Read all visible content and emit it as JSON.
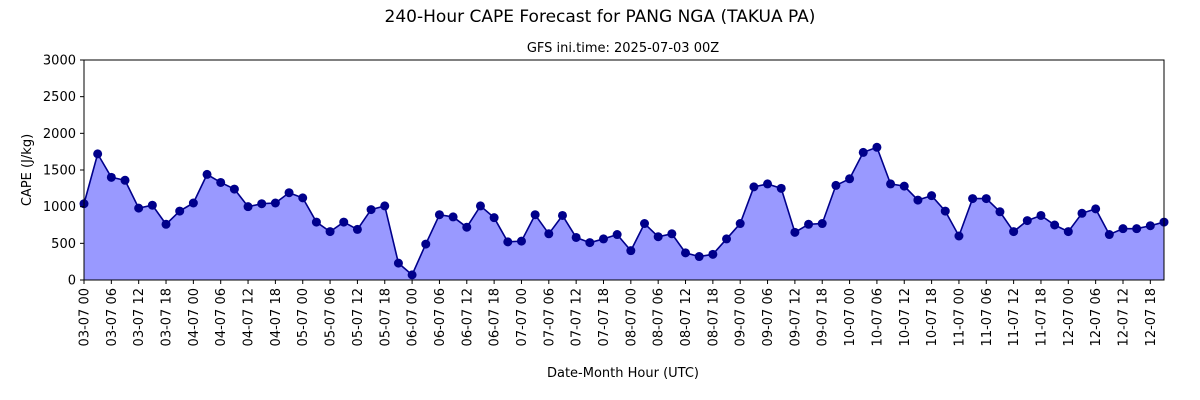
{
  "chart_data": {
    "type": "area",
    "title": "240-Hour CAPE Forecast for PANG NGA (TAKUA PA)",
    "subtitle": "GFS ini.time: 2025-07-03 00Z",
    "xlabel": "Date-Month Hour (UTC)",
    "ylabel": "CAPE (J/kg)",
    "ylim": [
      0,
      3000
    ],
    "yticks": [
      0,
      500,
      1000,
      1500,
      2000,
      2500,
      3000
    ],
    "x_step_hours": 3,
    "xticks": [
      "03-07 00",
      "03-07 06",
      "03-07 12",
      "03-07 18",
      "04-07 00",
      "04-07 06",
      "04-07 12",
      "04-07 18",
      "05-07 00",
      "05-07 06",
      "05-07 12",
      "05-07 18",
      "06-07 00",
      "06-07 06",
      "06-07 12",
      "06-07 18",
      "07-07 00",
      "07-07 06",
      "07-07 12",
      "07-07 18",
      "08-07 00",
      "08-07 06",
      "08-07 12",
      "08-07 18",
      "09-07 00",
      "09-07 06",
      "09-07 12",
      "09-07 18",
      "10-07 00",
      "10-07 06",
      "10-07 12",
      "10-07 18",
      "11-07 00",
      "11-07 06",
      "11-07 12",
      "11-07 18",
      "12-07 00",
      "12-07 06",
      "12-07 12",
      "12-07 18"
    ],
    "values": [
      1040,
      1720,
      1400,
      1360,
      980,
      1020,
      760,
      940,
      1050,
      1440,
      1330,
      1240,
      1000,
      1040,
      1050,
      1190,
      1120,
      790,
      660,
      790,
      690,
      960,
      1010,
      230,
      70,
      490,
      890,
      860,
      720,
      1010,
      850,
      520,
      530,
      890,
      630,
      880,
      580,
      510,
      560,
      620,
      400,
      770,
      590,
      630,
      370,
      320,
      350,
      560,
      770,
      1270,
      1310,
      1250,
      650,
      760,
      770,
      1290,
      1380,
      1740,
      1810,
      1310,
      1280,
      1090,
      1150,
      940,
      600,
      1110,
      1110,
      930,
      660,
      810,
      880,
      750,
      660,
      910,
      970,
      620,
      700,
      700,
      740,
      790
    ],
    "line_color": "#00008b",
    "fill_color": "#9999ff",
    "grid": false
  }
}
